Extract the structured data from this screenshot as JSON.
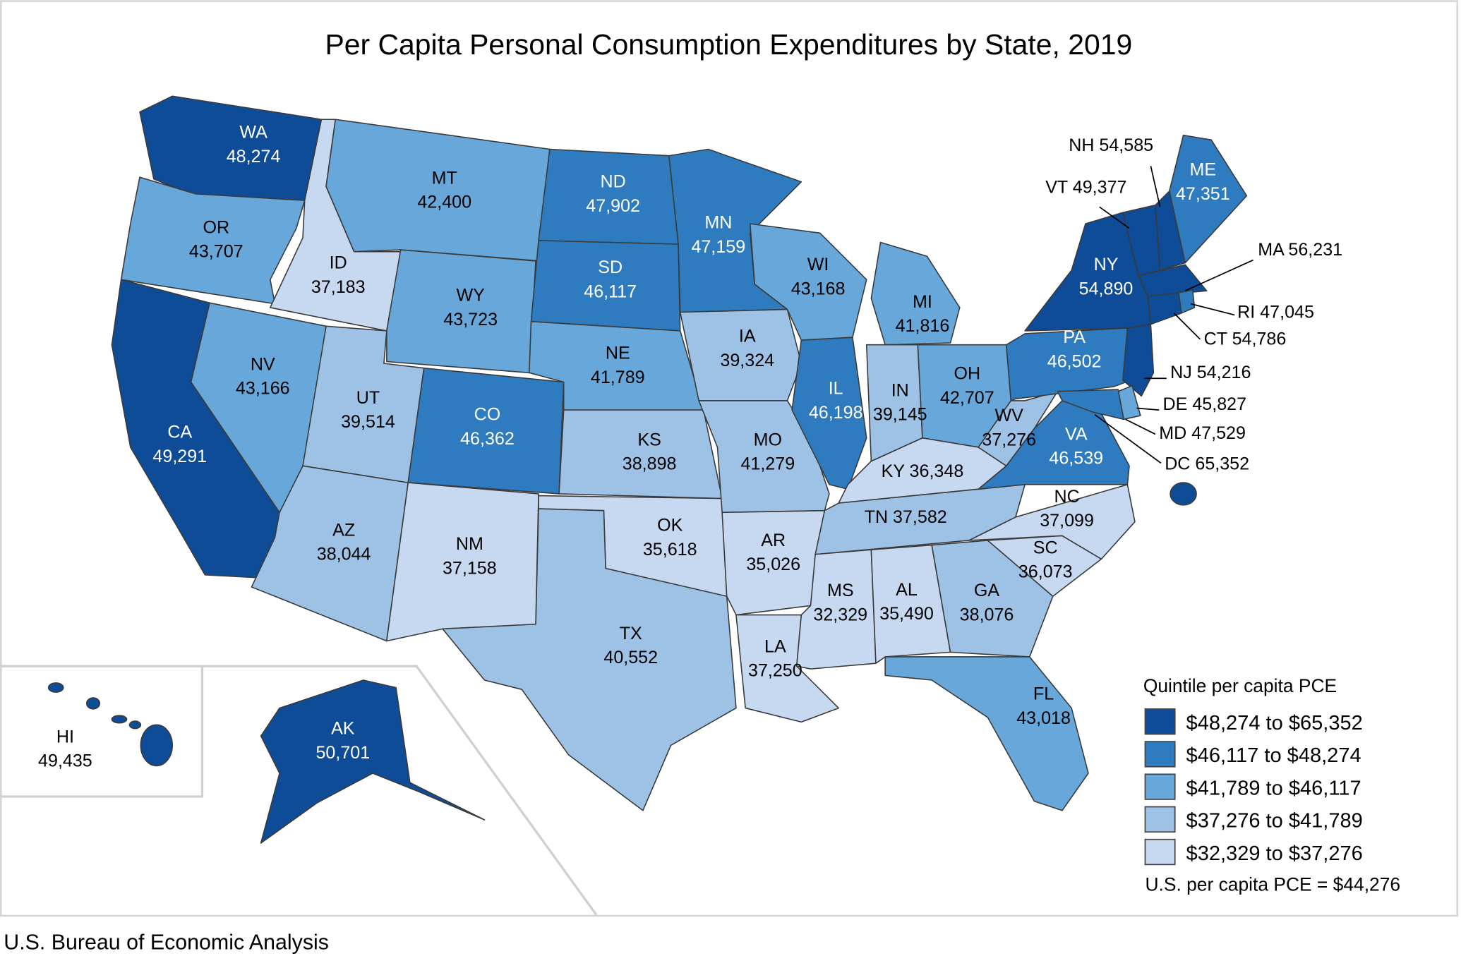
{
  "title": "Per Capita Personal Consumption Expenditures by State, 2019",
  "footer": "U.S. Bureau of Economic Analysis",
  "colors": {
    "q1": "#0e4c97",
    "q2": "#2f7bc0",
    "q3": "#67a7d9",
    "q4": "#9dc2e6",
    "q5": "#c6d9f1",
    "border": "#3a3a3a"
  },
  "legend": {
    "title": "Quintile per capita PCE",
    "items": [
      {
        "quintile": "q1",
        "label": "$48,274 to $65,352"
      },
      {
        "quintile": "q2",
        "label": "$46,117 to $48,274"
      },
      {
        "quintile": "q3",
        "label": "$41,789 to $46,117"
      },
      {
        "quintile": "q4",
        "label": "$37,276 to $41,789"
      },
      {
        "quintile": "q5",
        "label": "$32,329 to $37,276"
      }
    ],
    "us_note": "U.S. per capita PCE = $44,276"
  },
  "states": [
    {
      "abbr": "WA",
      "value": "48,274",
      "quintile": "q1"
    },
    {
      "abbr": "OR",
      "value": "43,707",
      "quintile": "q3"
    },
    {
      "abbr": "CA",
      "value": "49,291",
      "quintile": "q1"
    },
    {
      "abbr": "ID",
      "value": "37,183",
      "quintile": "q5"
    },
    {
      "abbr": "NV",
      "value": "43,166",
      "quintile": "q3"
    },
    {
      "abbr": "MT",
      "value": "42,400",
      "quintile": "q3"
    },
    {
      "abbr": "WY",
      "value": "43,723",
      "quintile": "q3"
    },
    {
      "abbr": "UT",
      "value": "39,514",
      "quintile": "q4"
    },
    {
      "abbr": "AZ",
      "value": "38,044",
      "quintile": "q4"
    },
    {
      "abbr": "CO",
      "value": "46,362",
      "quintile": "q2"
    },
    {
      "abbr": "NM",
      "value": "37,158",
      "quintile": "q5"
    },
    {
      "abbr": "ND",
      "value": "47,902",
      "quintile": "q2"
    },
    {
      "abbr": "SD",
      "value": "46,117",
      "quintile": "q2"
    },
    {
      "abbr": "NE",
      "value": "41,789",
      "quintile": "q3"
    },
    {
      "abbr": "KS",
      "value": "38,898",
      "quintile": "q4"
    },
    {
      "abbr": "OK",
      "value": "35,618",
      "quintile": "q5"
    },
    {
      "abbr": "TX",
      "value": "40,552",
      "quintile": "q4"
    },
    {
      "abbr": "MN",
      "value": "47,159",
      "quintile": "q2"
    },
    {
      "abbr": "IA",
      "value": "39,324",
      "quintile": "q4"
    },
    {
      "abbr": "MO",
      "value": "41,279",
      "quintile": "q4"
    },
    {
      "abbr": "AR",
      "value": "35,026",
      "quintile": "q5"
    },
    {
      "abbr": "LA",
      "value": "37,250",
      "quintile": "q5"
    },
    {
      "abbr": "WI",
      "value": "43,168",
      "quintile": "q3"
    },
    {
      "abbr": "IL",
      "value": "46,198",
      "quintile": "q2"
    },
    {
      "abbr": "MI",
      "value": "41,816",
      "quintile": "q3"
    },
    {
      "abbr": "IN",
      "value": "39,145",
      "quintile": "q4"
    },
    {
      "abbr": "OH",
      "value": "42,707",
      "quintile": "q3"
    },
    {
      "abbr": "KY",
      "value": "36,348",
      "quintile": "q5"
    },
    {
      "abbr": "TN",
      "value": "37,582",
      "quintile": "q4"
    },
    {
      "abbr": "WV",
      "value": "37,276",
      "quintile": "q4"
    },
    {
      "abbr": "MS",
      "value": "32,329",
      "quintile": "q5"
    },
    {
      "abbr": "AL",
      "value": "35,490",
      "quintile": "q5"
    },
    {
      "abbr": "GA",
      "value": "38,076",
      "quintile": "q4"
    },
    {
      "abbr": "FL",
      "value": "43,018",
      "quintile": "q3"
    },
    {
      "abbr": "SC",
      "value": "36,073",
      "quintile": "q5"
    },
    {
      "abbr": "NC",
      "value": "37,099",
      "quintile": "q5"
    },
    {
      "abbr": "VA",
      "value": "46,539",
      "quintile": "q2"
    },
    {
      "abbr": "PA",
      "value": "46,502",
      "quintile": "q2"
    },
    {
      "abbr": "NY",
      "value": "54,890",
      "quintile": "q1"
    },
    {
      "abbr": "NJ",
      "value": "54,216",
      "quintile": "q1"
    },
    {
      "abbr": "VT",
      "value": "49,377",
      "quintile": "q1"
    },
    {
      "abbr": "NH",
      "value": "54,585",
      "quintile": "q1"
    },
    {
      "abbr": "ME",
      "value": "47,351",
      "quintile": "q2"
    },
    {
      "abbr": "MA",
      "value": "56,231",
      "quintile": "q1"
    },
    {
      "abbr": "CT",
      "value": "54,786",
      "quintile": "q1"
    },
    {
      "abbr": "RI",
      "value": "47,045",
      "quintile": "q2"
    },
    {
      "abbr": "DE",
      "value": "45,827",
      "quintile": "q3"
    },
    {
      "abbr": "MD",
      "value": "47,529",
      "quintile": "q2"
    },
    {
      "abbr": "DC",
      "value": "65,352",
      "quintile": "q1"
    },
    {
      "abbr": "AK",
      "value": "50,701",
      "quintile": "q1"
    },
    {
      "abbr": "HI",
      "value": "49,435",
      "quintile": "q1"
    }
  ]
}
